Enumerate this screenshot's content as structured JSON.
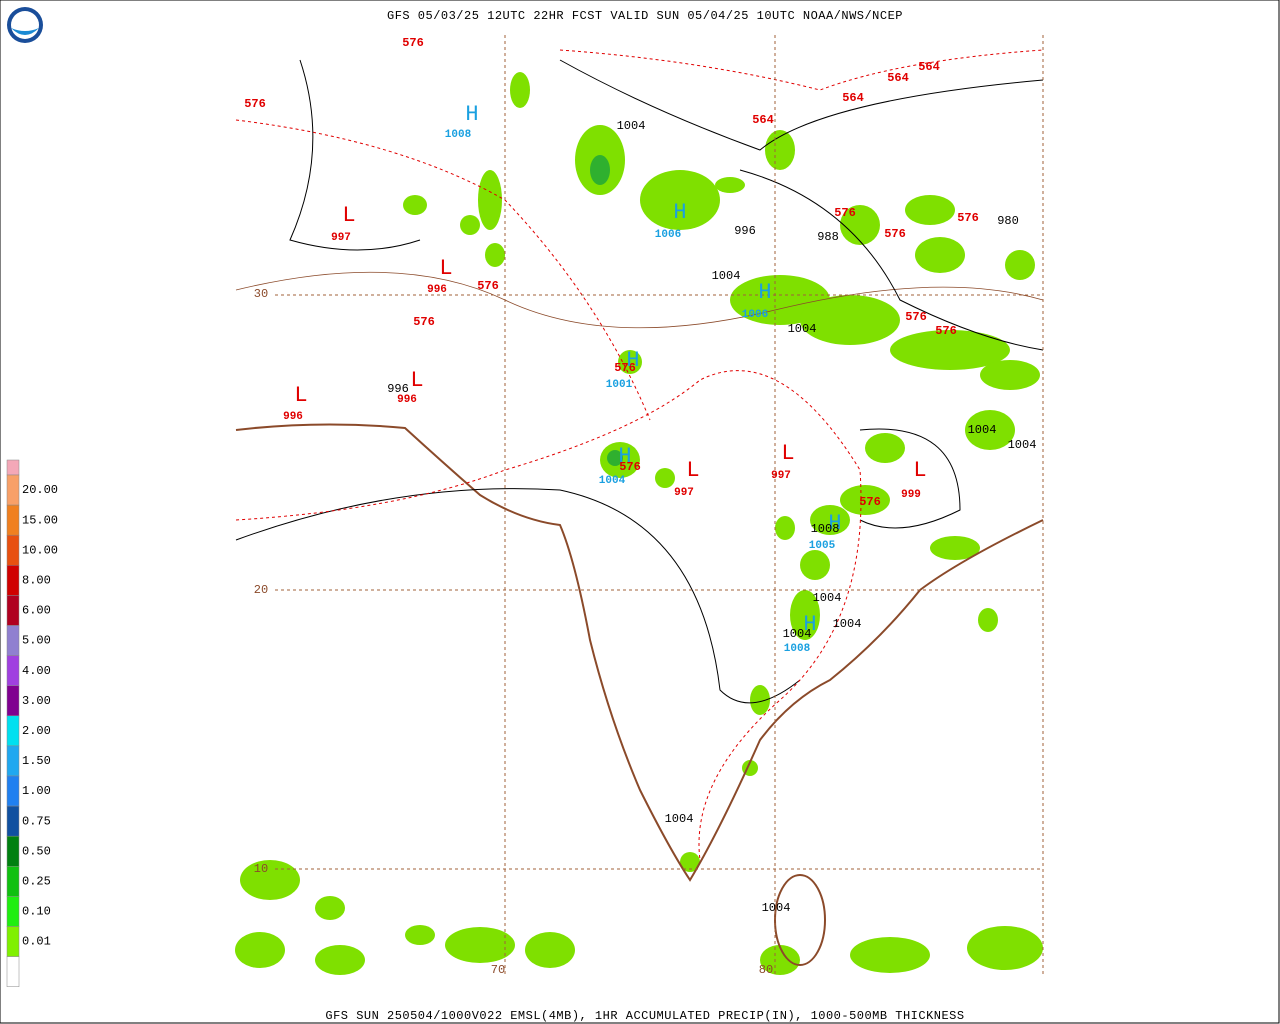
{
  "header": {
    "title": "GFS 05/03/25 12UTC 22HR FCST VALID SUN 05/04/25 10UTC NOAA/NWS/NCEP"
  },
  "footer": "GFS SUN 250504/1000V022 EMSL(4MB), 1HR ACCUMULATED PRECIP(IN), 1000-500MB THICKNESS",
  "legend": [
    "20.00",
    "15.00",
    "10.00",
    "8.00",
    "6.00",
    "5.00",
    "4.00",
    "3.00",
    "2.00",
    "1.50",
    "1.00",
    "0.75",
    "0.50",
    "0.25",
    "0.10",
    "0.01"
  ],
  "map": {
    "latitudes": [
      "30",
      "20",
      "10"
    ],
    "longitudes": [
      "70",
      "80"
    ],
    "thickness": [
      "576",
      "576",
      "576",
      "576",
      "576",
      "576",
      "576",
      "576",
      "576",
      "576",
      "576",
      "576",
      "564",
      "564",
      "564",
      "564"
    ],
    "lows": [
      "L",
      "L",
      "L",
      "L",
      "L",
      "L",
      "L"
    ],
    "low_values": [
      "997",
      "996",
      "996",
      "996",
      "997",
      "997",
      "999"
    ],
    "highs": [
      "H",
      "H",
      "H",
      "H",
      "H",
      "H",
      "H"
    ],
    "high_values": [
      "1008",
      "1006",
      "1006",
      "1001",
      "1004",
      "1005",
      "1008"
    ],
    "isobars": [
      "1004",
      "996",
      "988",
      "980",
      "1004",
      "1004",
      "996",
      "1004",
      "1004",
      "1008",
      "1004",
      "1004",
      "1004",
      "1004",
      "1004"
    ]
  }
}
